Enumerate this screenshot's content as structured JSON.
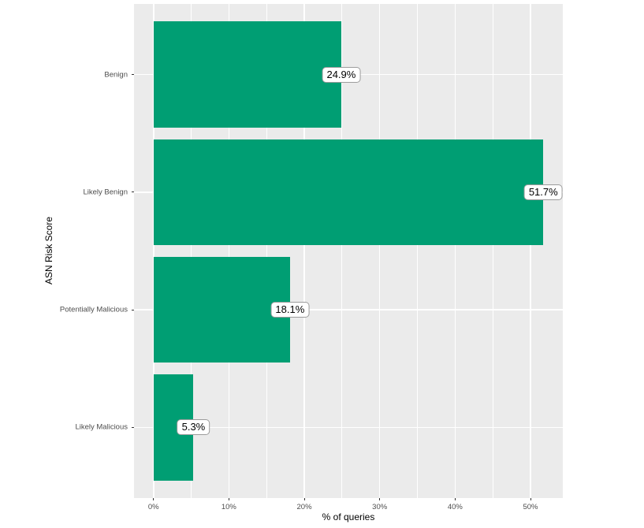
{
  "chart_data": {
    "type": "bar",
    "orientation": "horizontal",
    "title": "",
    "xlabel": "% of queries",
    "ylabel": "ASN Risk Score",
    "categories": [
      "Benign",
      "Likely Benign",
      "Potentially Malicious",
      "Likely Malicious"
    ],
    "values": [
      24.9,
      51.7,
      18.1,
      5.3
    ],
    "value_labels": [
      "24.9%",
      "51.7%",
      "18.1%",
      "5.3%"
    ],
    "x_ticks": [
      {
        "value": 0,
        "label": "0%"
      },
      {
        "value": 10,
        "label": "10%"
      },
      {
        "value": 20,
        "label": "20%"
      },
      {
        "value": 30,
        "label": "30%"
      },
      {
        "value": 40,
        "label": "40%"
      },
      {
        "value": 50,
        "label": "50%"
      }
    ],
    "x_minor_ticks": [
      5,
      15,
      25,
      35,
      45
    ],
    "xlim": [
      0,
      51.7
    ],
    "grid": true,
    "legend": false,
    "bar_width_ratio": 0.9,
    "colors": {
      "bar": "#009E73",
      "panel_bg": "#EBEBEB",
      "grid_major": "#FFFFFF",
      "grid_minor": "#FFFFFF",
      "axis_text": "#4D4D4D",
      "axis_title": "#000000",
      "tick_mark": "#333333",
      "label_box_bg": "#FFFFFF",
      "label_box_border": "#9C9C9C",
      "label_text": "#000000",
      "background": "#FFFFFF"
    }
  }
}
